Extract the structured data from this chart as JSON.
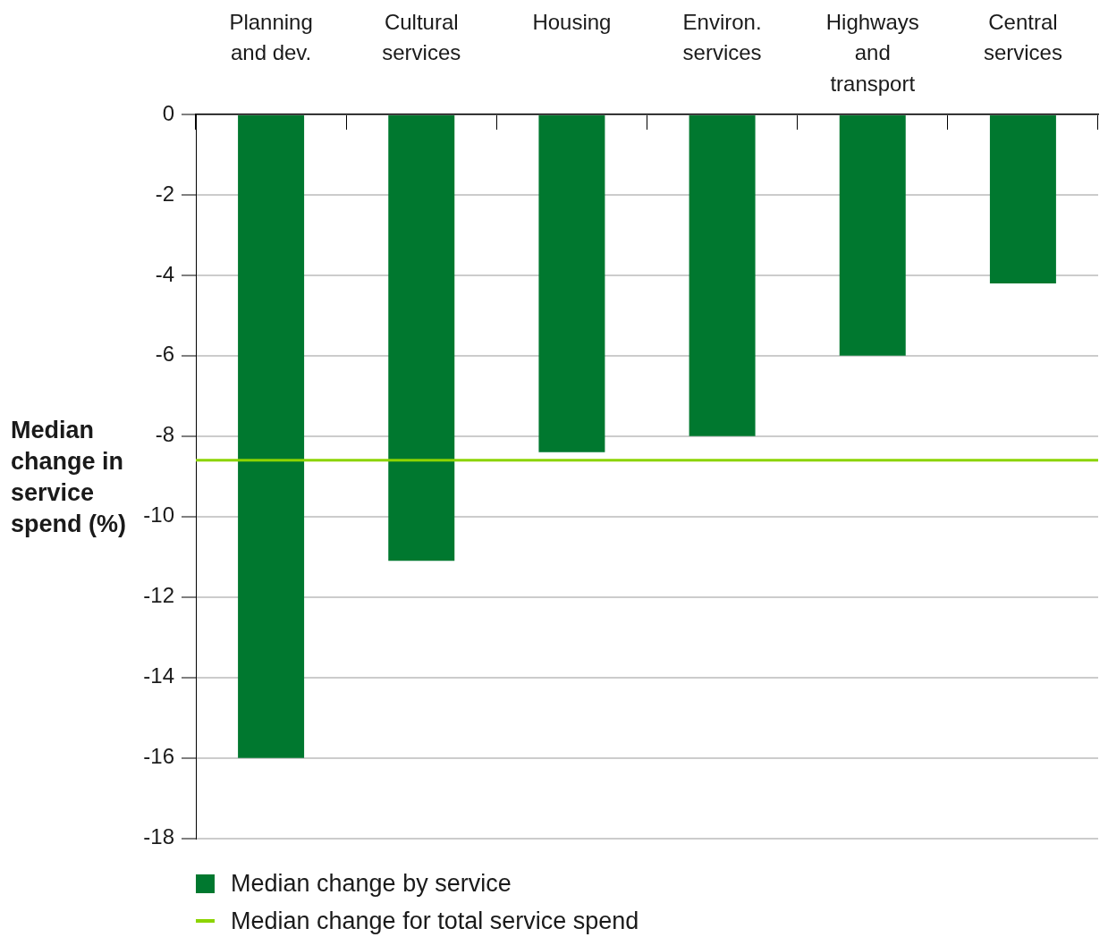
{
  "chart_data": {
    "type": "bar",
    "ylabel": "Median change in service spend (%)",
    "categories": [
      "Planning and dev.",
      "Cultural services",
      "Housing",
      "Environ. services",
      "Highways and transport",
      "Central services"
    ],
    "series": [
      {
        "name": "Median change by service",
        "color": "#00782f",
        "values": [
          -16.0,
          -11.1,
          -8.4,
          -8.0,
          -6.0,
          -4.2
        ]
      }
    ],
    "ylim": [
      -18,
      0
    ],
    "yticks": [
      0,
      -2,
      -4,
      -6,
      -8,
      -10,
      -12,
      -14,
      -16,
      -18
    ],
    "ref_lines": [
      {
        "axis": "y",
        "value": -8.6,
        "label": "Median change for total service spend",
        "color": "#8cd400"
      }
    ],
    "grid": "y",
    "legend": "bottom left"
  }
}
